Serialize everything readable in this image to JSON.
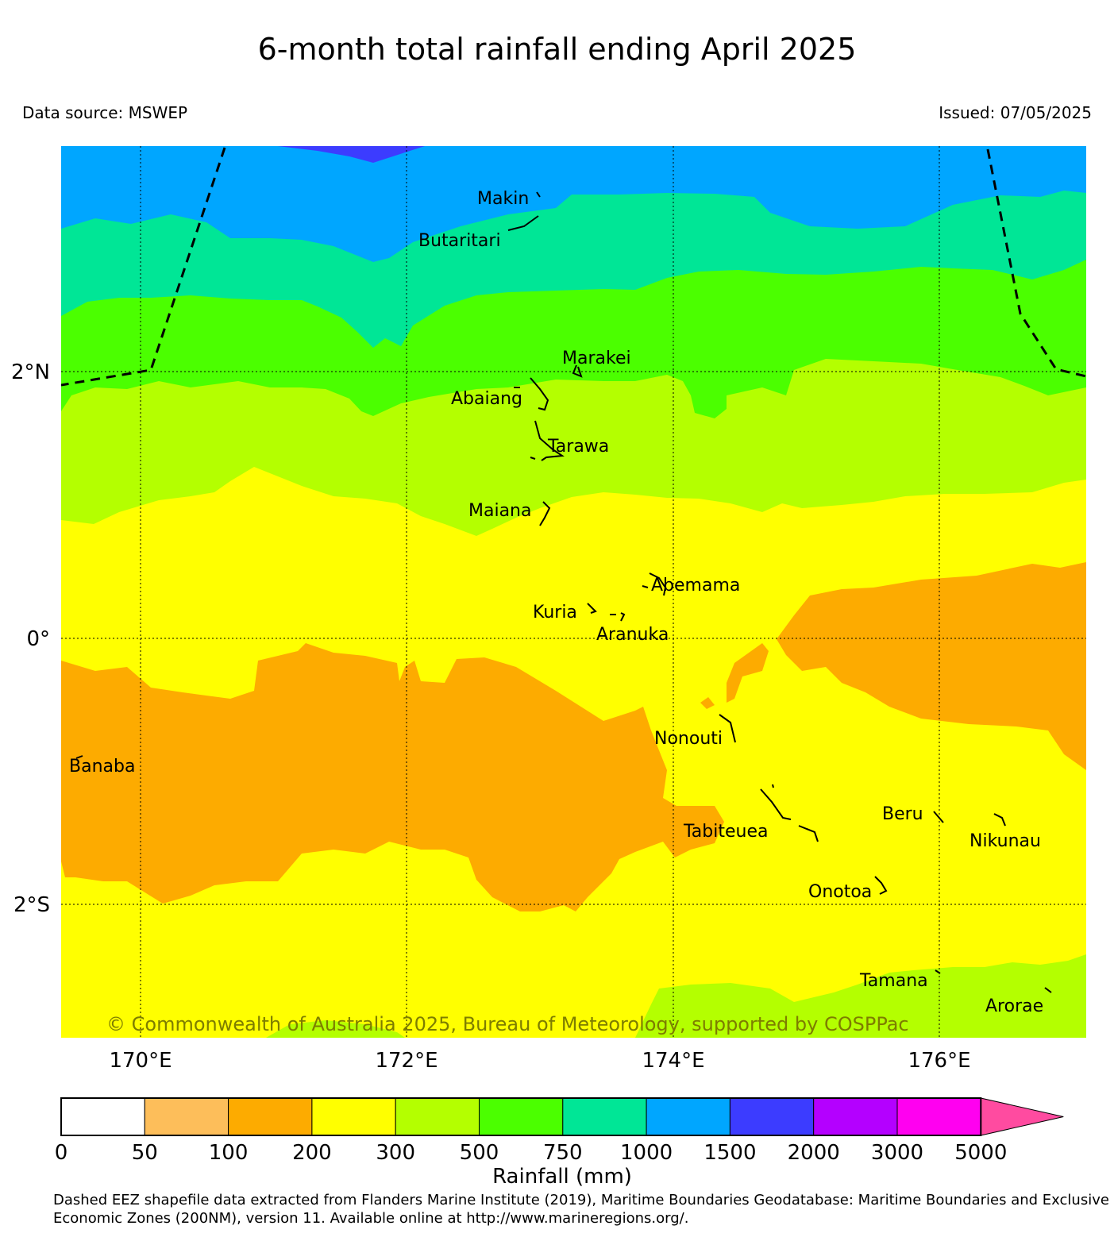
{
  "title": "6-month total rainfall ending April 2025",
  "data_source": "Data source: MSWEP",
  "issued": "Issued: 07/05/2025",
  "lat_labels": [
    "2°N",
    "0°",
    "2°S"
  ],
  "lon_labels": [
    "170°E",
    "172°E",
    "174°E",
    "176°E"
  ],
  "places": [
    "Makin",
    "Butaritari",
    "Marakei",
    "Abaiang",
    "Tarawa",
    "Maiana",
    "Abemama",
    "Kuria",
    "Aranuka",
    "Nonouti",
    "Banaba",
    "Tabiteuea",
    "Beru",
    "Nikunau",
    "Onotoa",
    "Tamana",
    "Arorae"
  ],
  "copyright": "© Commonwealth of Australia 2025, Bureau of Meteorology, supported by COSPPac",
  "colorbar": {
    "ticks": [
      "0",
      "50",
      "100",
      "200",
      "300",
      "500",
      "750",
      "1000",
      "1500",
      "2000",
      "3000",
      "5000"
    ],
    "colors": [
      "#ffffff",
      "#fdbe5a",
      "#fdab00",
      "#ffff00",
      "#b4ff00",
      "#4bff00",
      "#00e696",
      "#00a6ff",
      "#3c3cff",
      "#b400ff",
      "#ff00f0",
      "#ff4ba0"
    ],
    "title": "Rainfall (mm)"
  },
  "footnote": "Dashed EEZ shapefile data extracted from Flanders Marine Institute (2019), Maritime Boundaries Geodatabase: Maritime Boundaries and Exclusive Economic Zones (200NM), version 11. Available online at http://www.marineregions.org/."
}
